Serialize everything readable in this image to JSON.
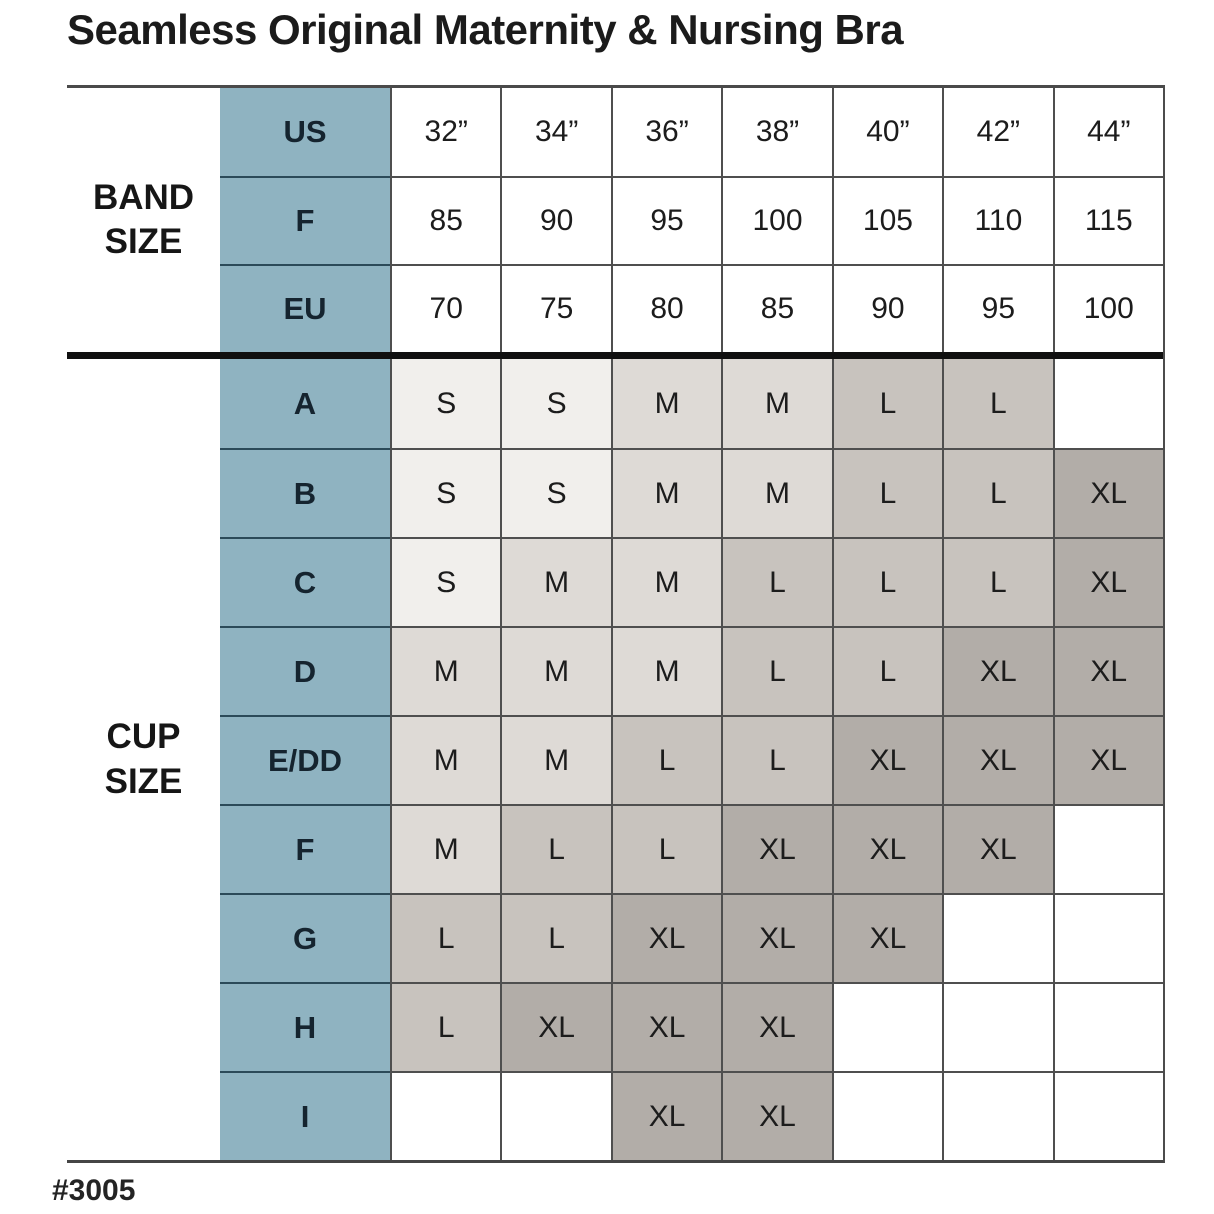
{
  "title": "Seamless Original Maternity & Nursing Bra",
  "style_number": "#3005",
  "chart_data": {
    "type": "table",
    "title": "Seamless Original Maternity & Nursing Bra",
    "band_label": [
      "BAND",
      "SIZE"
    ],
    "cup_label": [
      "CUP",
      "SIZE"
    ],
    "band_rows": [
      {
        "label": "US",
        "values": [
          "32”",
          "34”",
          "36”",
          "38”",
          "40”",
          "42”",
          "44”"
        ]
      },
      {
        "label": "F",
        "values": [
          "85",
          "90",
          "95",
          "100",
          "105",
          "110",
          "115"
        ]
      },
      {
        "label": "EU",
        "values": [
          "70",
          "75",
          "80",
          "85",
          "90",
          "95",
          "100"
        ]
      }
    ],
    "cup_rows": [
      {
        "label": "A",
        "values": [
          "S",
          "S",
          "M",
          "M",
          "L",
          "L",
          ""
        ]
      },
      {
        "label": "B",
        "values": [
          "S",
          "S",
          "M",
          "M",
          "L",
          "L",
          "XL"
        ]
      },
      {
        "label": "C",
        "values": [
          "S",
          "M",
          "M",
          "L",
          "L",
          "L",
          "XL"
        ]
      },
      {
        "label": "D",
        "values": [
          "M",
          "M",
          "M",
          "L",
          "L",
          "XL",
          "XL"
        ]
      },
      {
        "label": "E/DD",
        "values": [
          "M",
          "M",
          "L",
          "L",
          "XL",
          "XL",
          "XL"
        ]
      },
      {
        "label": "F",
        "values": [
          "M",
          "L",
          "L",
          "XL",
          "XL",
          "XL",
          ""
        ]
      },
      {
        "label": "G",
        "values": [
          "L",
          "L",
          "XL",
          "XL",
          "XL",
          "",
          ""
        ]
      },
      {
        "label": "H",
        "values": [
          "L",
          "XL",
          "XL",
          "XL",
          "",
          "",
          ""
        ]
      },
      {
        "label": "I",
        "values": [
          "",
          "",
          "XL",
          "XL",
          "",
          "",
          ""
        ]
      }
    ],
    "colors": {
      "header_column": "#8fb3c1",
      "size_S": "#f1efec",
      "size_M": "#dedad6",
      "size_L": "#c8c3be",
      "size_XL": "#b2ada8",
      "empty": "#ffffff",
      "grid_line": "#4f4f4f",
      "header_divider": "#2b4a59",
      "section_divider": "#101010"
    }
  }
}
